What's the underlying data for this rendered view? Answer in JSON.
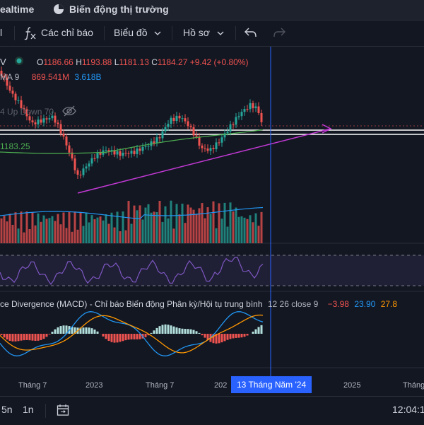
{
  "topnav": {
    "tab_realtime": "ealtime",
    "tab_market": "Biến động thị trường"
  },
  "toolbar": {
    "partial_label": "l",
    "indicators_label": "Các chỉ báo",
    "chart_label": "Biểu đồ",
    "profile_label": "Hồ sơ"
  },
  "legend": {
    "symbol_partial": "V",
    "ohlc": {
      "o_label": "O",
      "o_value": "1186.66",
      "h_label": "H",
      "h_value": "1193.88",
      "l_label": "L",
      "l_value": "1181.13",
      "c_label": "C",
      "c_value": "1184.27",
      "change": "+9.42 (+0.80%)"
    },
    "ma": {
      "label": "MA 9",
      "value1": "869.541M",
      "value2": "3.618B"
    },
    "updown": "4 Up Down 70",
    "ma_line_value": "1183.25",
    "macd": {
      "title": "ce Divergence (MACD) - Chỉ báo Biến động Phân kỳ/Hội tụ trung bình",
      "params": "12 26 close 9",
      "v1": "−3.98",
      "v2": "23.90",
      "v3": "27.8"
    }
  },
  "xaxis": {
    "labels": [
      "Tháng 7",
      "2023",
      "Tháng 7",
      "202",
      "2025",
      "Tháng"
    ],
    "active": "13 Tháng Năm '24"
  },
  "bottombar": {
    "range1": "5n",
    "range2": "1n",
    "time": "12:04:1"
  },
  "colors": {
    "up": "#26a69a",
    "down": "#ef5350",
    "trend": "#c239d4",
    "crosshair": "#2962ff",
    "ma_line": "#4caf50",
    "rsi": "#7e57c2",
    "macd": "#2196f3",
    "signal": "#ff9800"
  },
  "icons": {
    "realtime_icon": "radio-icon",
    "market_icon": "pie-chart-icon",
    "indicators_icon": "fx-icon",
    "undo_icon": "undo-icon",
    "redo_icon": "redo-icon",
    "eye_off_icon": "eye-off-icon",
    "calendar_icon": "calendar-range-icon"
  }
}
